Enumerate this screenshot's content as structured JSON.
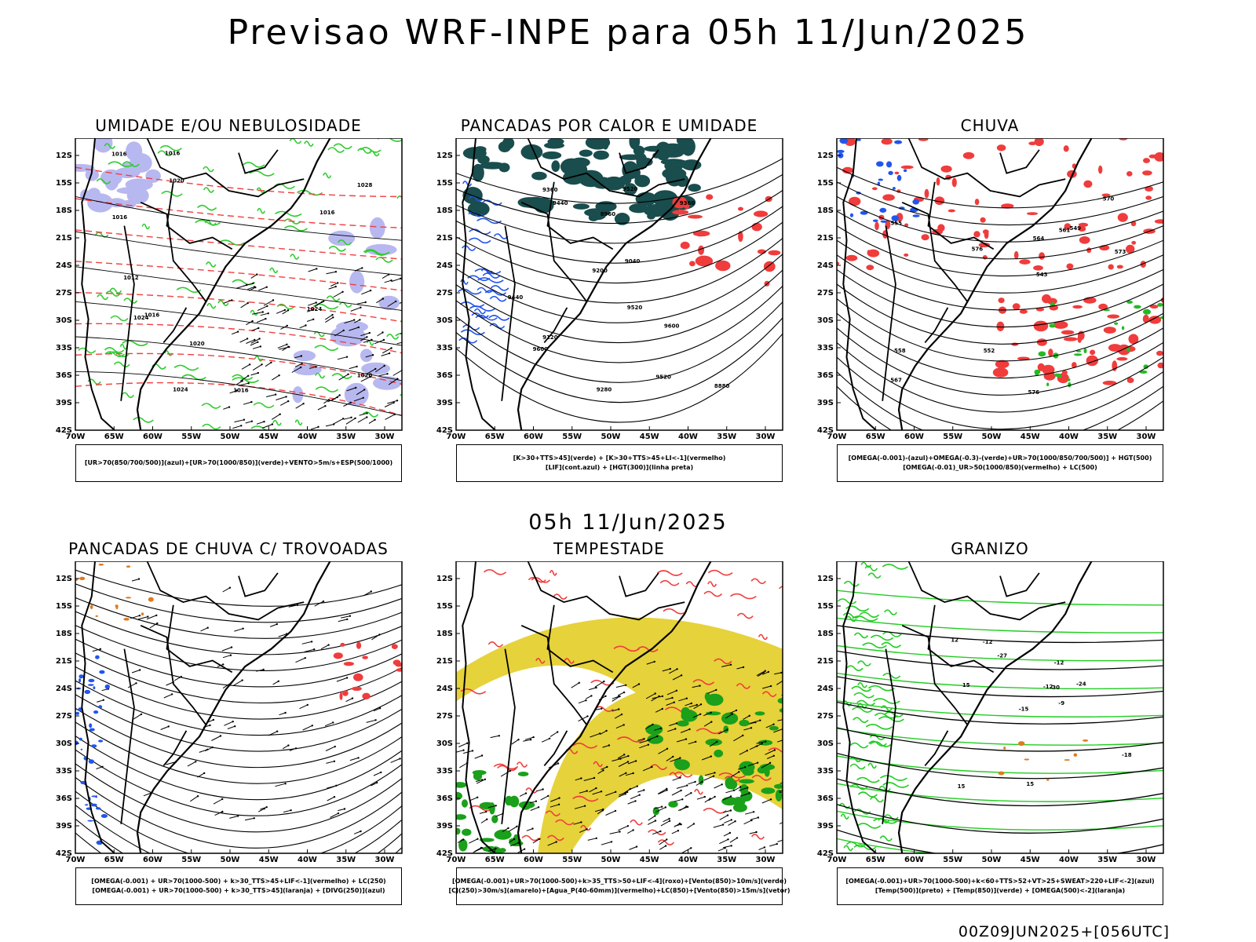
{
  "header": {
    "title": "Previsao WRF-INPE  para 05h 11/Jun/2025",
    "mid_title": "05h 11/Jun/2025",
    "footer": "00Z09JUN2025+[056UTC]"
  },
  "axes": {
    "lat_labels": [
      "12S",
      "15S",
      "18S",
      "21S",
      "24S",
      "27S",
      "30S",
      "33S",
      "36S",
      "39S",
      "42S"
    ],
    "lon_labels": [
      "70W",
      "65W",
      "60W",
      "55W",
      "50W",
      "45W",
      "40W",
      "35W",
      "30W"
    ]
  },
  "panels": [
    {
      "id": "umidade",
      "title": "UMIDADE E/OU NEBULOSIDADE",
      "legend": [
        "[UR>70(850/700/500)](azul)+[UR>70(1000/850)](verde)+VENTO>5m/s+ESP(500/1000)"
      ],
      "contour_labels": [
        "1016",
        "1016",
        "1016",
        "1020",
        "1016",
        "1020",
        "1024",
        "1024",
        "1016",
        "1028",
        "1012",
        "1016",
        "1024",
        "1020"
      ],
      "colors": {
        "blue_fill": "#b8b8f0",
        "green": "#2ecc2e",
        "red": "#f04040"
      }
    },
    {
      "id": "pancadas-calor",
      "title": "PANCADAS POR CALOR E UMIDADE",
      "legend": [
        "[K>30+TTS>45](verde) + [K>30+TTS>45+LI<-1](vermelho)",
        "[LIF](cont.azul) + [HGT(300)](linha preta)"
      ],
      "contour_labels": [
        "9600",
        "9520",
        "9520",
        "9440",
        "9440",
        "9360",
        "9280",
        "9200",
        "9120",
        "9040",
        "8960",
        "8880",
        "9360",
        "9600",
        "9520"
      ],
      "colors": {
        "teal_fill": "#1a4d4d",
        "red": "#f03c3c",
        "blue": "#2255ee"
      }
    },
    {
      "id": "chuva",
      "title": "CHUVA",
      "legend": [
        "[OMEGA(-0.001)-(azul)+OMEGA(-0.3)-(verde)+UR>70(1000/850/700/500)] + HGT(500)",
        "[OMEGA(-0.01)_UR>50(1000/850)(vermelho) + LC(500)"
      ],
      "contour_labels": [
        "576",
        "576",
        "573",
        "570",
        "567",
        "564",
        "561",
        "558",
        "555",
        "552",
        "549",
        "543"
      ],
      "colors": {
        "red": "#f03c3c",
        "blue": "#2255ee",
        "green": "#22bb22"
      }
    },
    {
      "id": "pancadas-trovoadas",
      "title": "PANCADAS DE CHUVA C/ TROVOADAS",
      "legend": [
        "[OMEGA(-0.001) + UR>70(1000-500) + k>30_TTS>45+LIF<-1](vermelho) + LC(250)",
        "[OMEGA(-0.001) + UR>70(1000-500) + k>30_TTS>45](laranja) + [DIVG(250)](azul)"
      ],
      "contour_labels": [],
      "colors": {
        "red": "#f03c3c",
        "blue": "#2255ee",
        "orange": "#e07a20"
      }
    },
    {
      "id": "tempestade",
      "title": "TEMPESTADE",
      "legend": [
        "[OMEGA(-0.001)+UR>70(1000-500)+k>35_TTS>50+LIF<-4](roxo)+[Vento(850)>10m/s](verde)",
        "[CJ(250)>30m/s](amarelo)+[Agua_P(40-60mm)](vermelho)+LC(850)+[Vento(850)>15m/s](vetor)"
      ],
      "contour_labels": [],
      "colors": {
        "yellow": "#e6d23a",
        "green": "#1aa01a",
        "red": "#f03c3c"
      }
    },
    {
      "id": "granizo",
      "title": "GRANIZO",
      "legend": [
        "[OMEGA(-0.001)+UR>70(1000-500)+k<60+TTS>52+VT>25+SWEAT>220+LIF<-2](azul)",
        "[Temp(500)](preto) + [Temp(850)](verde) + [OMEGA(500)<-2](laranja)"
      ],
      "contour_labels": [
        "-9",
        "-12",
        "-12",
        "-12",
        "-15",
        "-18",
        "-24",
        "-30",
        "-27",
        "12",
        "15",
        "15",
        "15"
      ],
      "colors": {
        "green": "#22cc22",
        "orange": "#e07a20"
      }
    }
  ]
}
